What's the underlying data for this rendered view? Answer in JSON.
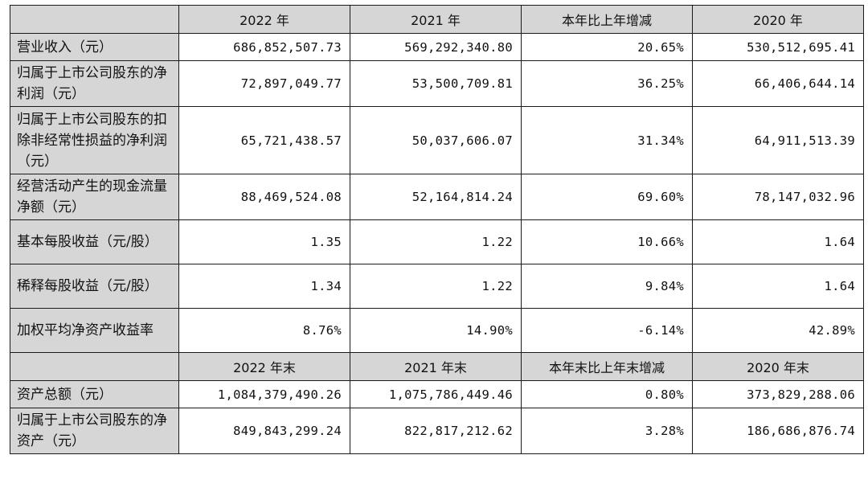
{
  "header1": [
    "2022 年",
    "2021 年",
    "本年比上年增减",
    "2020 年"
  ],
  "rows1": [
    {
      "label": "营业收入（元）",
      "values": [
        "686,852,507.73",
        "569,292,340.80",
        "20.65%",
        "530,512,695.41"
      ]
    },
    {
      "label": "归属于上市公司股东的净利润（元）",
      "values": [
        "72,897,049.77",
        "53,500,709.81",
        "36.25%",
        "66,406,644.14"
      ]
    },
    {
      "label": "归属于上市公司股东的扣除非经常性损益的净利润（元）",
      "values": [
        "65,721,438.57",
        "50,037,606.07",
        "31.34%",
        "64,911,513.39"
      ]
    },
    {
      "label": "经营活动产生的现金流量净额（元）",
      "values": [
        "88,469,524.08",
        "52,164,814.24",
        "69.60%",
        "78,147,032.96"
      ]
    },
    {
      "label": "基本每股收益（元/股）",
      "values": [
        "1.35",
        "1.22",
        "10.66%",
        "1.64"
      ]
    },
    {
      "label": "稀释每股收益（元/股）",
      "values": [
        "1.34",
        "1.22",
        "9.84%",
        "1.64"
      ]
    },
    {
      "label": "加权平均净资产收益率",
      "values": [
        "8.76%",
        "14.90%",
        "-6.14%",
        "42.89%"
      ]
    }
  ],
  "header2": [
    "2022 年末",
    "2021 年末",
    "本年末比上年末增减",
    "2020 年末"
  ],
  "rows2": [
    {
      "label": "资产总额（元）",
      "values": [
        "1,084,379,490.26",
        "1,075,786,449.46",
        "0.80%",
        "373,829,288.06"
      ]
    },
    {
      "label": "归属于上市公司股东的净资产（元）",
      "values": [
        "849,843,299.24",
        "822,817,212.62",
        "3.28%",
        "186,686,876.74"
      ]
    }
  ]
}
